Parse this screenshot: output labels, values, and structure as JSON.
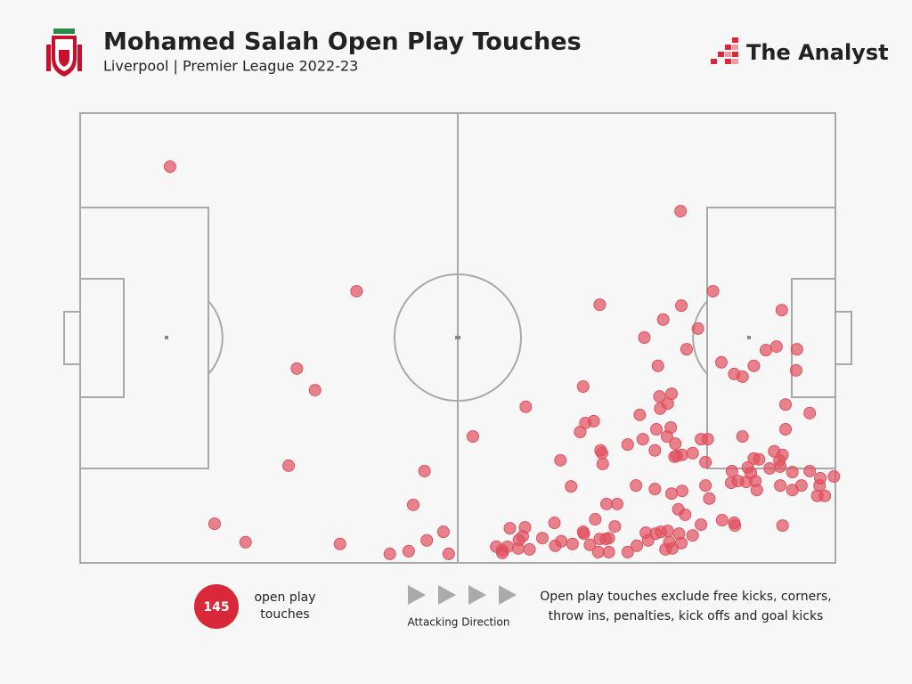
{
  "chart_data": {
    "type": "scatter",
    "title": "Mohamed Salah Open Play Touches",
    "subtitle": "Liverpool | Premier League 2022-23",
    "brand": "The Analyst",
    "color": "#e0505e",
    "xlim": [
      0,
      100
    ],
    "ylim": [
      0,
      100
    ],
    "x": [
      11.9,
      36.6,
      28.7,
      31.1,
      27.6,
      17.8,
      21.9,
      34.4,
      41.0,
      43.5,
      45.9,
      48.1,
      48.8,
      44.1,
      45.6,
      52.0,
      59.0,
      68.8,
      79.5,
      83.8,
      79.6,
      77.2,
      74.7,
      81.8,
      80.3,
      92.9,
      76.5,
      84.9,
      86.6,
      87.7,
      89.2,
      90.8,
      92.2,
      94.9,
      94.8,
      66.6,
      76.7,
      78.3,
      77.8,
      76.8,
      74.1,
      68.0,
      66.9,
      66.2,
      78.2,
      76.3,
      74.5,
      77.7,
      78.8,
      76.1,
      82.2,
      83.1,
      87.7,
      93.4,
      96.6,
      93.4,
      68.9,
      69.2,
      63.6,
      79.0,
      79.7,
      81.1,
      82.8,
      89.2,
      89.9,
      91.9,
      93.0,
      92.6,
      91.3,
      92.7,
      88.4,
      88.8,
      89.4,
      88.2,
      87.1,
      86.2,
      89.6,
      92.7,
      94.3,
      96.6,
      94.3,
      95.5,
      98.0,
      99.8,
      97.9,
      97.6,
      98.6,
      65.0,
      73.6,
      76.1,
      78.3,
      79.7,
      82.8,
      83.3,
      69.7,
      71.1,
      68.2,
      70.8,
      79.2,
      80.1,
      82.2,
      85.0,
      86.6,
      86.7,
      93.0,
      56.9,
      58.9,
      58.6,
      61.2,
      62.8,
      66.6,
      66.7,
      63.7,
      65.2,
      67.5,
      68.8,
      70.0,
      70.0,
      68.6,
      72.5,
      73.7,
      74.9,
      76.2,
      75.2,
      76.9,
      78.0,
      78.4,
      77.5,
      79.6,
      79.3,
      81.1,
      55.1,
      55.9,
      56.6,
      58.0,
      59.5,
      62.9,
      72.5,
      78.7,
      58.1,
      55.9,
      69.1,
      86.3,
      77.8,
      69.6
    ],
    "values": [
      88.1,
      60.4,
      43.2,
      38.4,
      21.6,
      8.7,
      4.6,
      4.2,
      2.0,
      2.6,
      5.0,
      6.9,
      2.0,
      12.9,
      20.4,
      28.1,
      34.7,
      57.4,
      78.2,
      60.4,
      57.2,
      54.1,
      50.1,
      52.1,
      47.5,
      56.2,
      43.8,
      44.6,
      42.0,
      41.4,
      43.8,
      47.3,
      48.1,
      47.5,
      42.8,
      39.2,
      37.0,
      37.6,
      35.4,
      34.3,
      32.9,
      31.5,
      31.1,
      29.1,
      30.1,
      29.7,
      27.5,
      28.1,
      26.5,
      25.0,
      27.5,
      27.5,
      28.1,
      35.2,
      33.3,
      29.7,
      25.0,
      22.0,
      22.8,
      23.8,
      24.0,
      24.4,
      22.4,
      23.2,
      23.0,
      24.8,
      24.0,
      22.8,
      21.0,
      21.4,
      21.2,
      20.0,
      18.2,
      18.0,
      18.2,
      17.8,
      16.2,
      17.2,
      20.2,
      20.4,
      16.2,
      17.2,
      18.8,
      19.2,
      17.2,
      14.9,
      14.9,
      17.0,
      17.2,
      16.4,
      15.4,
      16.0,
      17.2,
      14.3,
      13.1,
      13.1,
      9.7,
      8.1,
      11.9,
      10.7,
      8.5,
      9.5,
      8.9,
      8.3,
      8.3,
      7.7,
      7.9,
      5.9,
      5.5,
      8.9,
      6.9,
      6.5,
      4.8,
      4.2,
      4.0,
      5.3,
      5.5,
      2.4,
      2.4,
      2.4,
      3.8,
      6.7,
      6.5,
      5.0,
      6.9,
      4.6,
      3.2,
      3.0,
      4.4,
      6.5,
      6.1,
      3.6,
      2.8,
      3.6,
      3.2,
      3.0,
      3.8,
      26.3,
      23.6,
      5.1,
      2.2,
      24.4,
      20.4,
      7.1,
      5.3
    ],
    "total": 145,
    "total_label": "open play touches",
    "direction_label": "Attacking Direction",
    "note": [
      "Open play touches exclude free kicks, corners,",
      "throw ins, penalties, kick offs and goal kicks"
    ]
  }
}
